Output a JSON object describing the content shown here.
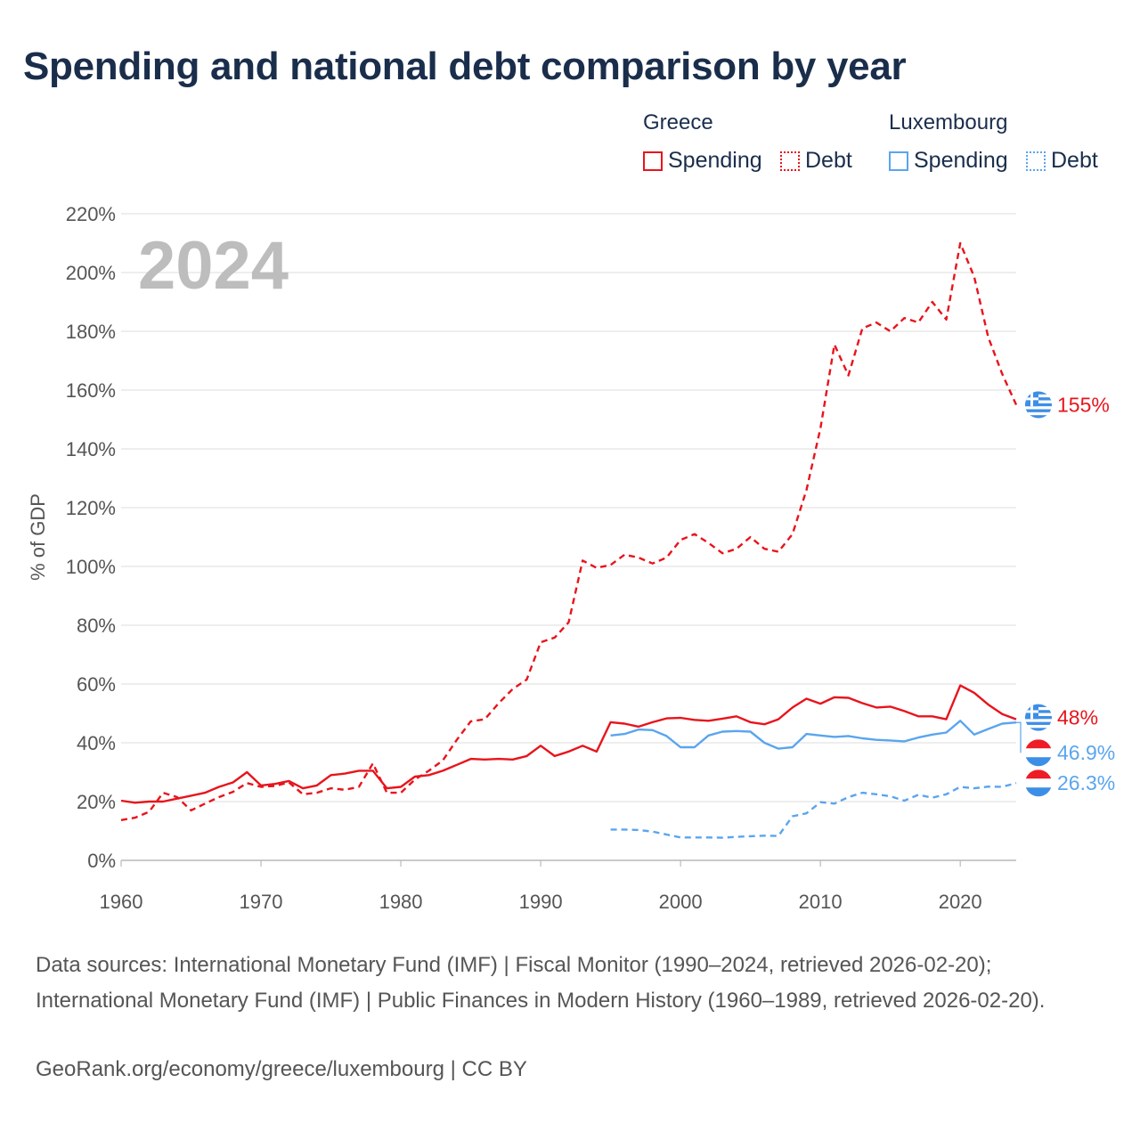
{
  "title": "Spending and national debt comparison by year",
  "legend": {
    "groups": [
      {
        "name": "Greece",
        "items": [
          {
            "label": "Spending",
            "style": "solid"
          },
          {
            "label": "Debt",
            "style": "dotted"
          }
        ],
        "color": "#e8141c"
      },
      {
        "name": "Luxembourg",
        "items": [
          {
            "label": "Spending",
            "style": "solid"
          },
          {
            "label": "Debt",
            "style": "dotted"
          }
        ],
        "color": "#5aa5ee"
      }
    ]
  },
  "chart_data": {
    "type": "line",
    "title": "Spending and national debt comparison by year",
    "xlabel": "",
    "ylabel": "% of GDP",
    "year_display": "2024",
    "xlim": [
      1960,
      2024
    ],
    "ylim": [
      0,
      220
    ],
    "x_ticks": [
      1960,
      1970,
      1980,
      1990,
      2000,
      2010,
      2020
    ],
    "y_ticks": [
      0,
      20,
      40,
      60,
      80,
      100,
      120,
      140,
      160,
      180,
      200,
      220
    ],
    "y_tick_labels": [
      "0%",
      "20%",
      "40%",
      "60%",
      "80%",
      "100%",
      "120%",
      "140%",
      "160%",
      "180%",
      "200%",
      "220%"
    ],
    "series": [
      {
        "name": "Greece Spending",
        "country": "Greece",
        "metric": "Spending",
        "color": "#e8141c",
        "dash": "solid",
        "end_label": "48%",
        "x": [
          1960,
          1961,
          1962,
          1963,
          1964,
          1965,
          1966,
          1967,
          1968,
          1969,
          1970,
          1971,
          1972,
          1973,
          1974,
          1975,
          1976,
          1977,
          1978,
          1979,
          1980,
          1981,
          1982,
          1983,
          1984,
          1985,
          1986,
          1987,
          1988,
          1989,
          1990,
          1991,
          1992,
          1993,
          1994,
          1995,
          1996,
          1997,
          1998,
          1999,
          2000,
          2001,
          2002,
          2003,
          2004,
          2005,
          2006,
          2007,
          2008,
          2009,
          2010,
          2011,
          2012,
          2013,
          2014,
          2015,
          2016,
          2017,
          2018,
          2019,
          2020,
          2021,
          2022,
          2023,
          2024
        ],
        "values": [
          20.3,
          19.6,
          20.0,
          20.0,
          21.0,
          22.0,
          23.0,
          25.0,
          26.5,
          30.0,
          25.5,
          26.0,
          27.0,
          24.5,
          25.5,
          29.0,
          29.5,
          30.5,
          30.5,
          24.5,
          25.0,
          28.5,
          29.0,
          30.5,
          32.5,
          34.5,
          34.3,
          34.5,
          34.3,
          35.5,
          39.0,
          35.5,
          37.0,
          39.0,
          37.0,
          47.0,
          46.5,
          45.5,
          47.0,
          48.3,
          48.5,
          47.8,
          47.5,
          48.2,
          49.0,
          47.0,
          46.3,
          48.0,
          52.0,
          55.0,
          53.3,
          55.5,
          55.3,
          53.5,
          52.0,
          52.3,
          50.8,
          49.0,
          49.0,
          48.0,
          59.5,
          57.0,
          53.0,
          49.8,
          48.0
        ]
      },
      {
        "name": "Greece Debt",
        "country": "Greece",
        "metric": "Debt",
        "color": "#e8141c",
        "dash": "dotted",
        "end_label": "155%",
        "x": [
          1960,
          1961,
          1962,
          1963,
          1964,
          1965,
          1966,
          1967,
          1968,
          1969,
          1970,
          1971,
          1972,
          1973,
          1974,
          1975,
          1976,
          1977,
          1978,
          1979,
          1980,
          1981,
          1982,
          1983,
          1984,
          1985,
          1986,
          1987,
          1988,
          1989,
          1990,
          1991,
          1992,
          1993,
          1994,
          1995,
          1996,
          1997,
          1998,
          1999,
          2000,
          2001,
          2002,
          2003,
          2004,
          2005,
          2006,
          2007,
          2008,
          2009,
          2010,
          2011,
          2012,
          2013,
          2014,
          2015,
          2016,
          2017,
          2018,
          2019,
          2020,
          2021,
          2022,
          2023,
          2024
        ],
        "values": [
          13.7,
          14.5,
          16.5,
          23.0,
          21.5,
          17.0,
          19.3,
          21.5,
          23.3,
          26.3,
          25.0,
          25.3,
          26.5,
          22.5,
          23.0,
          24.5,
          24.0,
          25.0,
          33.0,
          23.0,
          23.0,
          27.5,
          30.5,
          34.0,
          41.0,
          47.3,
          48.0,
          53.5,
          58.3,
          61.5,
          74.2,
          75.8,
          81.0,
          102.0,
          99.5,
          100.5,
          104.0,
          103.0,
          101.0,
          103.0,
          109.0,
          111.0,
          108.0,
          104.5,
          106.0,
          110.0,
          106.0,
          105.0,
          111.0,
          126.0,
          147.0,
          175.5,
          165.0,
          181.0,
          183.0,
          180.0,
          184.5,
          183.0,
          190.0,
          184.0,
          210.0,
          198.5,
          178.0,
          165.5,
          155.0
        ]
      },
      {
        "name": "Luxembourg Spending",
        "country": "Luxembourg",
        "metric": "Spending",
        "color": "#5aa5ee",
        "dash": "solid",
        "end_label": "46.9%",
        "x": [
          1995,
          1996,
          1997,
          1998,
          1999,
          2000,
          2001,
          2002,
          2003,
          2004,
          2005,
          2006,
          2007,
          2008,
          2009,
          2010,
          2011,
          2012,
          2013,
          2014,
          2015,
          2016,
          2017,
          2018,
          2019,
          2020,
          2021,
          2022,
          2023,
          2024
        ],
        "values": [
          42.5,
          43.0,
          44.5,
          44.3,
          42.3,
          38.5,
          38.5,
          42.5,
          43.8,
          44.0,
          43.8,
          40.0,
          38.0,
          38.5,
          43.0,
          42.5,
          42.0,
          42.3,
          41.5,
          41.0,
          40.8,
          40.5,
          41.8,
          42.8,
          43.5,
          47.5,
          42.8,
          44.7,
          46.5,
          46.9
        ]
      },
      {
        "name": "Luxembourg Debt",
        "country": "Luxembourg",
        "metric": "Debt",
        "color": "#5aa5ee",
        "dash": "dotted",
        "end_label": "26.3%",
        "x": [
          1995,
          1996,
          1997,
          1998,
          1999,
          2000,
          2001,
          2002,
          2003,
          2004,
          2005,
          2006,
          2007,
          2008,
          2009,
          2010,
          2011,
          2012,
          2013,
          2014,
          2015,
          2016,
          2017,
          2018,
          2019,
          2020,
          2021,
          2022,
          2023,
          2024
        ],
        "values": [
          10.5,
          10.5,
          10.3,
          9.8,
          8.8,
          7.8,
          7.8,
          7.8,
          7.7,
          8.0,
          8.2,
          8.4,
          8.3,
          15.0,
          16.0,
          19.8,
          19.3,
          21.5,
          23.0,
          22.5,
          21.8,
          20.3,
          22.3,
          21.3,
          22.5,
          25.0,
          24.5,
          25.1,
          25.0,
          26.3
        ]
      }
    ]
  },
  "flags": {
    "greece": {
      "name": "Greece flag",
      "blue": "#3d8ee6",
      "white": "#ffffff"
    },
    "luxembourg": {
      "name": "Luxembourg flag",
      "red": "#ee1c25",
      "white": "#ffffff",
      "blue": "#3d8ee6"
    }
  },
  "footer": {
    "sources": "Data sources: International Monetary Fund (IMF) | Fiscal Monitor (1990–2024, retrieved 2026-02-20); International Monetary Fund (IMF) | Public Finances in Modern History (1960–1989, retrieved 2026-02-20).",
    "credit": "GeoRank.org/economy/greece/luxembourg | CC BY"
  }
}
